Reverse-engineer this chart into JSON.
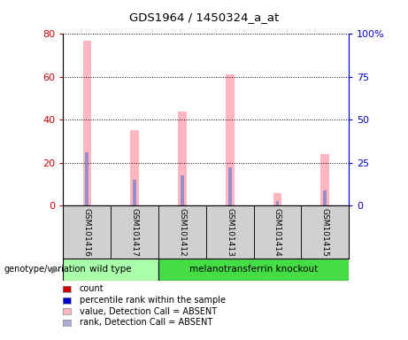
{
  "title": "GDS1964 / 1450324_a_at",
  "categories": [
    "GSM101416",
    "GSM101417",
    "GSM101412",
    "GSM101413",
    "GSM101414",
    "GSM101415"
  ],
  "pink_values": [
    77,
    35,
    44,
    61,
    6,
    24
  ],
  "blue_values": [
    25,
    12,
    14,
    18,
    2,
    7
  ],
  "ylim_left": [
    0,
    80
  ],
  "ylim_right": [
    0,
    100
  ],
  "yticks_left": [
    0,
    20,
    40,
    60,
    80
  ],
  "ytick_labels_right": [
    "0",
    "25",
    "50",
    "75",
    "100%"
  ],
  "yticks_right": [
    0,
    25,
    50,
    75,
    100
  ],
  "wild_type_label": "wild type",
  "knockout_label": "melanotransferrin knockout",
  "wild_type_color": "#aaffaa",
  "knockout_color": "#44dd44",
  "pink_color": "#ffb6c1",
  "blue_color": "#8888cc",
  "axis_color_left": "#cc0000",
  "axis_color_right": "#0000cc",
  "bar_width": 0.18,
  "blue_bar_width": 0.07,
  "bg_color": "#d0d0d0",
  "legend_items": [
    {
      "label": "count",
      "color": "#cc0000"
    },
    {
      "label": "percentile rank within the sample",
      "color": "#0000cc"
    },
    {
      "label": "value, Detection Call = ABSENT",
      "color": "#ffb6c1"
    },
    {
      "label": "rank, Detection Call = ABSENT",
      "color": "#aaaadd"
    }
  ],
  "genotype_label": "genotype/variation",
  "arrow_symbol": "▶"
}
